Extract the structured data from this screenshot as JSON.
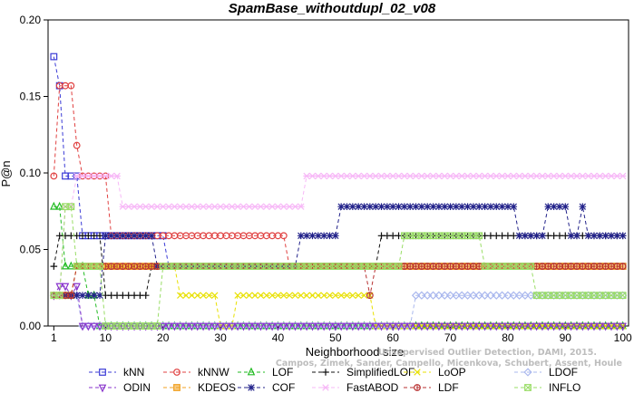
{
  "chart_data": {
    "type": "line",
    "title": "SpamBase_withoutdupl_02_v08",
    "xlabel": "Neighborhood size",
    "ylabel": "P@n",
    "xlim": [
      0,
      101
    ],
    "ylim": [
      0,
      0.2
    ],
    "xticks": [
      1,
      10,
      20,
      30,
      40,
      50,
      60,
      70,
      80,
      90,
      100
    ],
    "yticks": [
      0.0,
      0.05,
      0.1,
      0.15,
      0.2
    ],
    "ytick_labels": [
      "0.00",
      "0.05",
      "0.10",
      "0.15",
      "0.20"
    ],
    "grid": false,
    "legend_position": "bottom",
    "watermark_lines": [
      "Unsupervised Outlier Detection, DAMI, 2015.",
      "Campos, Zimek, Sander, Campello, Micenkova, Schubert, Assent, Houle"
    ],
    "series": [
      {
        "name": "kNN",
        "color": "#3b3bd6",
        "marker": "square",
        "points": [
          [
            1,
            0.176
          ],
          [
            2,
            0.157
          ],
          [
            3,
            0.098
          ],
          [
            5,
            0.098
          ],
          [
            6,
            0.059
          ],
          [
            20,
            0.059
          ],
          [
            21,
            0.039
          ],
          [
            100,
            0.039
          ]
        ]
      },
      {
        "name": "kNNW",
        "color": "#e04040",
        "marker": "circle",
        "points": [
          [
            1,
            0.098
          ],
          [
            2,
            0.157
          ],
          [
            4,
            0.157
          ],
          [
            5,
            0.118
          ],
          [
            6,
            0.098
          ],
          [
            10,
            0.098
          ],
          [
            11,
            0.059
          ],
          [
            41,
            0.059
          ],
          [
            42,
            0.039
          ],
          [
            100,
            0.039
          ]
        ]
      },
      {
        "name": "LOF",
        "color": "#22bb22",
        "marker": "triangle-up",
        "points": [
          [
            1,
            0.078
          ],
          [
            2,
            0.078
          ],
          [
            3,
            0.039
          ],
          [
            6,
            0.039
          ],
          [
            7,
            0.02
          ],
          [
            8,
            0.02
          ],
          [
            9,
            0.0
          ],
          [
            100,
            0.0
          ]
        ]
      },
      {
        "name": "SimplifiedLOF",
        "color": "#111111",
        "marker": "plus",
        "points": [
          [
            1,
            0.039
          ],
          [
            2,
            0.059
          ],
          [
            9,
            0.059
          ],
          [
            10,
            0.02
          ],
          [
            17,
            0.02
          ],
          [
            18,
            0.039
          ],
          [
            57,
            0.039
          ],
          [
            58,
            0.059
          ],
          [
            100,
            0.059
          ]
        ]
      },
      {
        "name": "LoOP",
        "color": "#e8e000",
        "marker": "x",
        "points": [
          [
            1,
            0.02
          ],
          [
            4,
            0.02
          ],
          [
            5,
            0.039
          ],
          [
            22,
            0.039
          ],
          [
            23,
            0.02
          ],
          [
            30,
            0.0
          ],
          [
            33,
            0.02
          ],
          [
            56,
            0.02
          ],
          [
            57,
            0.0
          ],
          [
            100,
            0.0
          ]
        ]
      },
      {
        "name": "LDOF",
        "color": "#aab8ee",
        "marker": "diamond",
        "points": [
          [
            1,
            0.02
          ],
          [
            5,
            0.02
          ],
          [
            6,
            0.0
          ],
          [
            63,
            0.0
          ],
          [
            64,
            0.02
          ],
          [
            100,
            0.02
          ]
        ]
      },
      {
        "name": "ODIN",
        "color": "#8833cc",
        "marker": "triangle-down",
        "points": [
          [
            1,
            0.02
          ],
          [
            2,
            0.026
          ],
          [
            3,
            0.026
          ],
          [
            4,
            0.02
          ],
          [
            5,
            0.026
          ],
          [
            6,
            0.0
          ],
          [
            100,
            0.0
          ]
        ]
      },
      {
        "name": "KDEOS",
        "color": "#f0a020",
        "marker": "square-filled",
        "points": [
          [
            1,
            0.02
          ],
          [
            4,
            0.02
          ],
          [
            5,
            0.039
          ],
          [
            100,
            0.039
          ]
        ]
      },
      {
        "name": "COF",
        "color": "#22228a",
        "marker": "star",
        "points": [
          [
            1,
            0.02
          ],
          [
            9,
            0.02
          ],
          [
            10,
            0.059
          ],
          [
            18,
            0.059
          ],
          [
            19,
            0.039
          ],
          [
            43,
            0.039
          ],
          [
            44,
            0.059
          ],
          [
            50,
            0.059
          ],
          [
            51,
            0.078
          ],
          [
            81,
            0.078
          ],
          [
            82,
            0.059
          ],
          [
            86,
            0.059
          ],
          [
            87,
            0.078
          ],
          [
            90,
            0.078
          ],
          [
            91,
            0.059
          ],
          [
            92,
            0.059
          ],
          [
            93,
            0.078
          ],
          [
            94,
            0.059
          ],
          [
            100,
            0.059
          ]
        ]
      },
      {
        "name": "FastABOD",
        "color": "#f7b8f7",
        "marker": "plus-cross",
        "points": [
          [
            1,
            0.02
          ],
          [
            2,
            0.02
          ],
          [
            3,
            0.078
          ],
          [
            5,
            0.098
          ],
          [
            12,
            0.098
          ],
          [
            13,
            0.078
          ],
          [
            44,
            0.078
          ],
          [
            45,
            0.098
          ],
          [
            100,
            0.098
          ]
        ]
      },
      {
        "name": "LDF",
        "color": "#b83030",
        "marker": "circle-dot",
        "points": [
          [
            1,
            0.02
          ],
          [
            4,
            0.02
          ],
          [
            5,
            0.039
          ],
          [
            55,
            0.039
          ],
          [
            56,
            0.02
          ],
          [
            57,
            0.039
          ],
          [
            100,
            0.039
          ]
        ]
      },
      {
        "name": "INFLO",
        "color": "#99dd66",
        "marker": "square-x",
        "points": [
          [
            1,
            0.02
          ],
          [
            3,
            0.078
          ],
          [
            4,
            0.078
          ],
          [
            5,
            0.039
          ],
          [
            10,
            0.0
          ],
          [
            19,
            0.0
          ],
          [
            20,
            0.039
          ],
          [
            61,
            0.039
          ],
          [
            62,
            0.059
          ],
          [
            75,
            0.059
          ],
          [
            76,
            0.039
          ],
          [
            84,
            0.039
          ],
          [
            85,
            0.02
          ],
          [
            100,
            0.02
          ]
        ]
      }
    ]
  }
}
